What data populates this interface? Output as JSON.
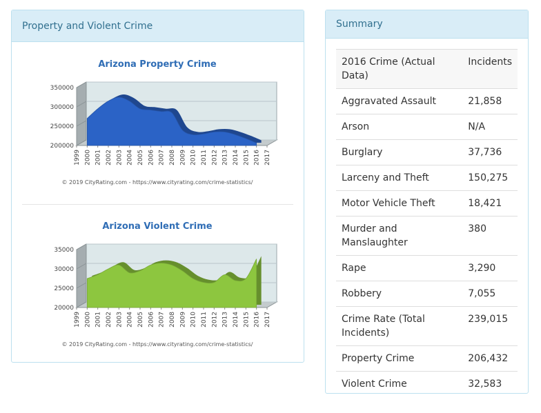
{
  "left_panel": {
    "title": "Property and Violent Crime"
  },
  "chart_data": [
    {
      "type": "area",
      "title": "Arizona Property Crime",
      "x": [
        2000,
        2001,
        2002,
        2003,
        2004,
        2005,
        2006,
        2007,
        2008,
        2009,
        2010,
        2011,
        2012,
        2013,
        2014,
        2015,
        2016
      ],
      "values": [
        270000,
        295000,
        315000,
        325000,
        315000,
        295000,
        292000,
        288000,
        285000,
        240000,
        228000,
        230000,
        235000,
        235000,
        228000,
        218000,
        206432
      ],
      "color": "#2b63c6",
      "xlim": [
        1999,
        2017
      ],
      "xticks": [
        1999,
        2000,
        2001,
        2002,
        2003,
        2004,
        2005,
        2006,
        2007,
        2008,
        2009,
        2010,
        2011,
        2012,
        2013,
        2014,
        2015,
        2016,
        2017
      ],
      "ylim": [
        200000,
        350000
      ],
      "yticks": [
        200000,
        250000,
        300000,
        350000
      ],
      "grid": true,
      "credit": "© 2019 CityRating.com - https://www.cityrating.com/crime-statistics/"
    },
    {
      "type": "area",
      "title": "Arizona Violent Crime",
      "x": [
        2000,
        2001,
        2002,
        2003,
        2004,
        2005,
        2006,
        2007,
        2008,
        2009,
        2010,
        2011,
        2012,
        2013,
        2014,
        2015,
        2016
      ],
      "values": [
        27500,
        28500,
        30000,
        31000,
        29000,
        29500,
        31000,
        31500,
        31000,
        29500,
        27500,
        26500,
        26500,
        28500,
        27000,
        27500,
        32583
      ],
      "color": "#8dc63f",
      "xlim": [
        1999,
        2017
      ],
      "xticks": [
        1999,
        2000,
        2001,
        2002,
        2003,
        2004,
        2005,
        2006,
        2007,
        2008,
        2009,
        2010,
        2011,
        2012,
        2013,
        2014,
        2015,
        2016,
        2017
      ],
      "ylim": [
        20000,
        35000
      ],
      "yticks": [
        20000,
        25000,
        30000,
        35000
      ],
      "grid": true,
      "credit": "© 2019 CityRating.com - https://www.cityrating.com/crime-statistics/"
    }
  ],
  "summary": {
    "title": "Summary",
    "header": [
      "2016 Crime (Actual Data)",
      "Incidents"
    ],
    "rows": [
      [
        "Aggravated Assault",
        "21,858"
      ],
      [
        "Arson",
        "N/A"
      ],
      [
        "Burglary",
        "37,736"
      ],
      [
        "Larceny and Theft",
        "150,275"
      ],
      [
        "Motor Vehicle Theft",
        "18,421"
      ],
      [
        "Murder and Manslaughter",
        "380"
      ],
      [
        "Rape",
        "3,290"
      ],
      [
        "Robbery",
        "7,055"
      ],
      [
        "Crime Rate (Total Incidents)",
        "239,015"
      ],
      [
        "Property Crime",
        "206,432"
      ],
      [
        "Violent Crime",
        "32,583"
      ]
    ]
  }
}
